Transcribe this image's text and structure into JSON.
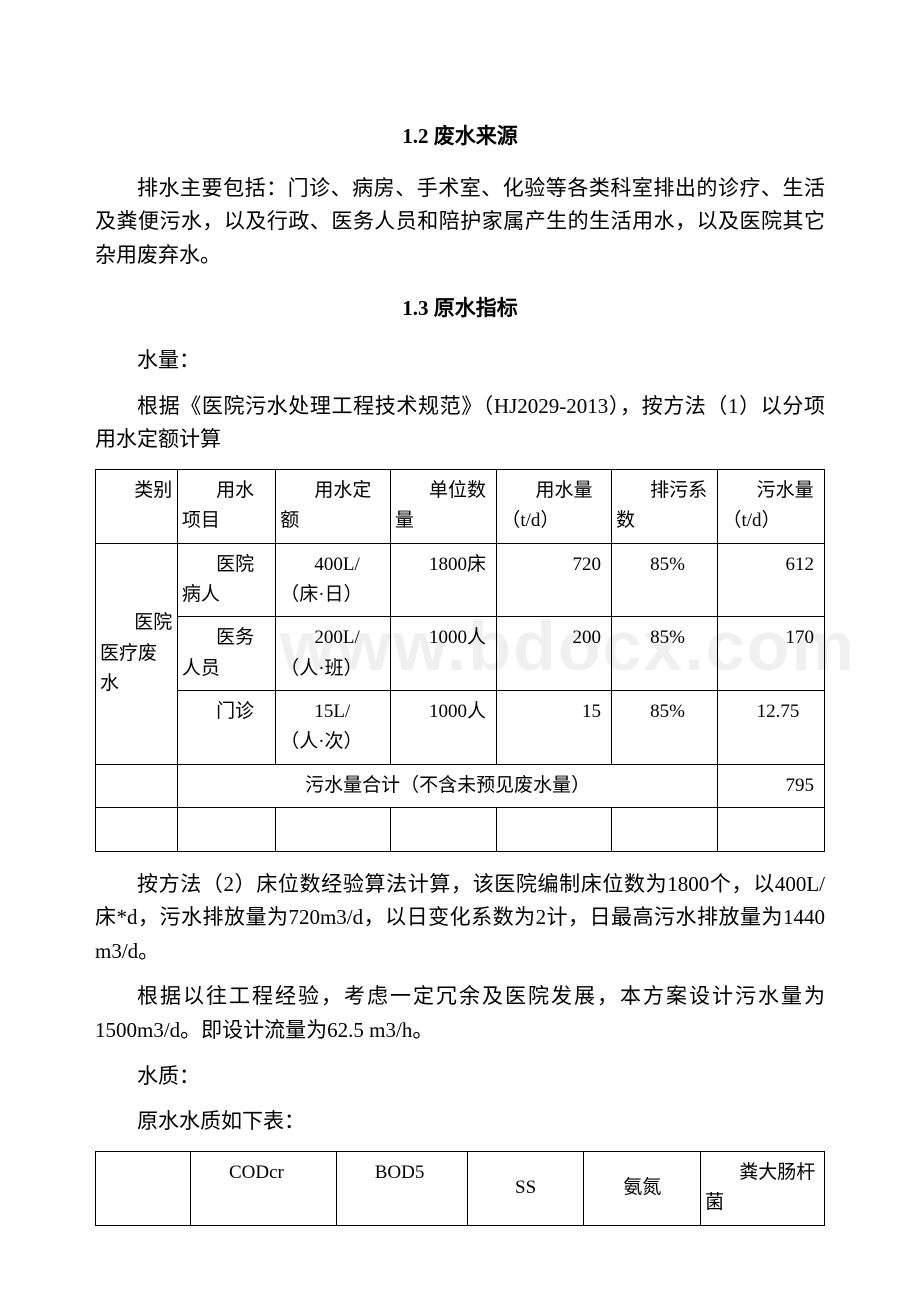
{
  "watermark": "www.bdocx.com",
  "headings": {
    "h1_2": "1.2 废水来源",
    "h1_3": "1.3 原水指标"
  },
  "paragraphs": {
    "p1": "排水主要包括：门诊、病房、手术室、化验等各类科室排出的诊疗、生活及粪便污水，以及行政、医务人员和陪护家属产生的生活用水，以及医院其它杂用废弃水。",
    "p2": "水量：",
    "p3": "根据《医院污水处理工程技术规范》（HJ2029-2013），按方法（1）以分项用水定额计算",
    "p4": "按方法（2）床位数经验算法计算，该医院编制床位数为1800个，以400L/床*d，污水排放量为720m3/d，以日变化系数为2计，日最高污水排放量为1440 m3/d。",
    "p5": "根据以往工程经验，考虑一定冗余及医院发展，本方案设计污水量为1500m3/d。即设计流量为62.5 m3/h。",
    "p6": "水质：",
    "p7": "原水水质如下表："
  },
  "table1": {
    "headers": {
      "c1": "类别",
      "c2": "用水项目",
      "c3": "用水定额",
      "c4": "单位数量",
      "c5": "用水量（t/d）",
      "c6": "排污系数",
      "c7": "污水量（t/d）"
    },
    "cat_label": "医院医疗废水",
    "rows": [
      {
        "c2": "医院病人",
        "c3": "400L/（床·日）",
        "c4": "1800床",
        "c5": "720",
        "c6": "85%",
        "c7": "612"
      },
      {
        "c2": "医务人员",
        "c3": "200L/（人·班）",
        "c4": "1000人",
        "c5": "200",
        "c6": "85%",
        "c7": "170"
      },
      {
        "c2": "门诊",
        "c3": "15L/（人·次）",
        "c4": "1000人",
        "c5": "15",
        "c6": "85%",
        "c7": "12.75"
      }
    ],
    "total_label": "污水量合计（不含未预见废水量）",
    "total_value": "795"
  },
  "table2": {
    "headers": {
      "c1": "",
      "c2": "CODcr",
      "c3": "BOD5",
      "c4": "SS",
      "c5": "氨氮",
      "c6": "粪大肠杆菌"
    }
  },
  "styling": {
    "body_bg": "#ffffff",
    "text_color": "#000000",
    "border_color": "#000000",
    "font_family": "SimSun",
    "base_fontsize": 21,
    "table_fontsize": 19
  }
}
